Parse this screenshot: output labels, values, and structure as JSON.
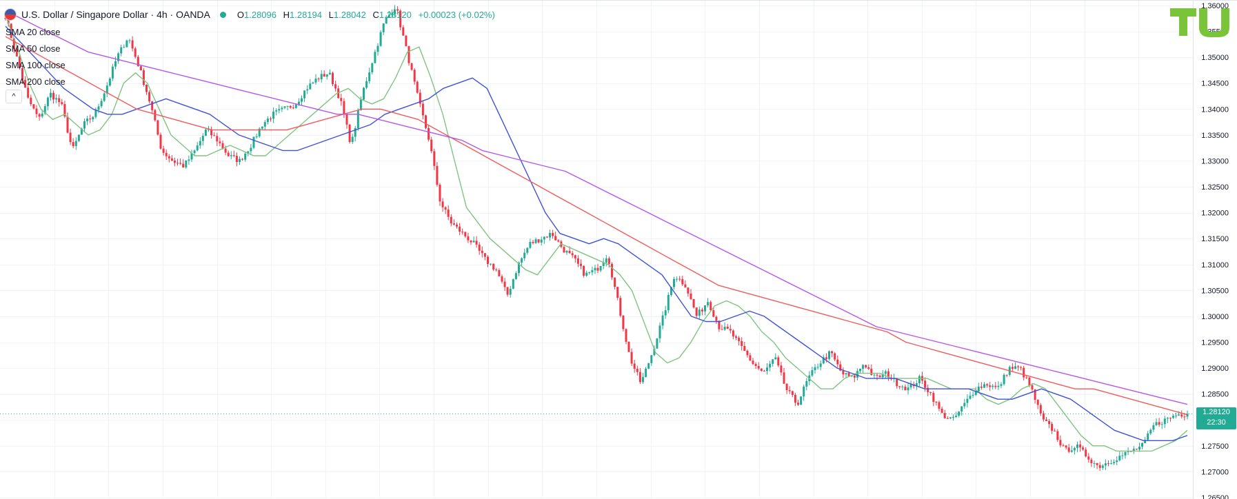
{
  "header": {
    "symbol_title": "U.S. Dollar / Singapore Dollar · 4h · OANDA",
    "open_label": "O",
    "open_value": "1.28096",
    "high_label": "H",
    "high_value": "1.28194",
    "low_label": "L",
    "low_value": "1.28042",
    "close_label": "C",
    "close_value": "1.28120",
    "change": "+0.00023 (+0.02%)"
  },
  "legend": [
    "SMA 20 close",
    "SMA 50 close",
    "SMA 100 close",
    "SMA 200 close"
  ],
  "collapse_icon": "^",
  "price_label": {
    "price": "1.28120",
    "timer": "22:30"
  },
  "colors": {
    "up": "#22ab94",
    "down": "#f23645",
    "sma20": "#7fc47f",
    "sma50": "#3f51d8",
    "sma100": "#f25a5a",
    "sma200": "#b455f2",
    "accent": "#22ab94"
  },
  "chart_data": {
    "type": "candlestick",
    "ylim": [
      1.265,
      1.36
    ],
    "y_ticks": [
      "1.36000",
      "1.35500",
      "1.35000",
      "1.34500",
      "1.34000",
      "1.33500",
      "1.33000",
      "1.32500",
      "1.32000",
      "1.31500",
      "1.31000",
      "1.30500",
      "1.30000",
      "1.29500",
      "1.29000",
      "1.28500",
      "1.28000",
      "1.27500",
      "1.27000",
      "1.26500"
    ],
    "close_anchors": [
      1.358,
      1.35,
      1.342,
      1.338,
      1.343,
      1.341,
      1.332,
      1.337,
      1.339,
      1.344,
      1.35,
      1.354,
      1.348,
      1.341,
      1.332,
      1.33,
      1.329,
      1.332,
      1.336,
      1.334,
      1.331,
      1.33,
      1.333,
      1.337,
      1.339,
      1.34,
      1.341,
      1.344,
      1.346,
      1.347,
      1.342,
      1.333,
      1.343,
      1.35,
      1.357,
      1.36,
      1.351,
      1.342,
      1.334,
      1.322,
      1.318,
      1.316,
      1.314,
      1.311,
      1.309,
      1.304,
      1.31,
      1.314,
      1.315,
      1.316,
      1.313,
      1.311,
      1.308,
      1.309,
      1.312,
      1.302,
      1.292,
      1.287,
      1.293,
      1.3,
      1.308,
      1.306,
      1.3,
      1.303,
      1.298,
      1.297,
      1.294,
      1.291,
      1.289,
      1.292,
      1.286,
      1.283,
      1.288,
      1.291,
      1.293,
      1.289,
      1.288,
      1.291,
      1.288,
      1.289,
      1.287,
      1.286,
      1.288,
      1.285,
      1.281,
      1.28,
      1.283,
      1.286,
      1.287,
      1.286,
      1.29,
      1.29,
      1.286,
      1.28,
      1.278,
      1.274,
      1.275,
      1.273,
      1.271,
      1.272,
      1.273,
      1.274,
      1.275,
      1.279,
      1.28,
      1.281,
      1.2812
    ],
    "series": [
      {
        "name": "SMA 20 close",
        "values": [
          1.358,
          1.352,
          1.345,
          1.34,
          1.338,
          1.339,
          1.337,
          1.335,
          1.336,
          1.339,
          1.345,
          1.347,
          1.345,
          1.34,
          1.335,
          1.333,
          1.331,
          1.331,
          1.332,
          1.333,
          1.332,
          1.331,
          1.331,
          1.333,
          1.335,
          1.337,
          1.339,
          1.341,
          1.343,
          1.344,
          1.342,
          1.341,
          1.342,
          1.346,
          1.351,
          1.352,
          1.346,
          1.339,
          1.33,
          1.321,
          1.318,
          1.315,
          1.313,
          1.311,
          1.309,
          1.308,
          1.311,
          1.314,
          1.313,
          1.312,
          1.311,
          1.31,
          1.308,
          1.305,
          1.299,
          1.293,
          1.291,
          1.292,
          1.295,
          1.299,
          1.302,
          1.303,
          1.302,
          1.3,
          1.297,
          1.295,
          1.292,
          1.29,
          1.288,
          1.286,
          1.286,
          1.288,
          1.289,
          1.289,
          1.289,
          1.288,
          1.288,
          1.288,
          1.288,
          1.287,
          1.286,
          1.286,
          1.286,
          1.284,
          1.283,
          1.284,
          1.286,
          1.287,
          1.286,
          1.283,
          1.28,
          1.277,
          1.275,
          1.275,
          1.274,
          1.274,
          1.274,
          1.274,
          1.275,
          1.276,
          1.278
        ]
      },
      {
        "name": "SMA 50 close",
        "values": [
          1.356,
          1.353,
          1.35,
          1.347,
          1.344,
          1.342,
          1.34,
          1.339,
          1.339,
          1.34,
          1.341,
          1.342,
          1.341,
          1.34,
          1.339,
          1.337,
          1.335,
          1.334,
          1.333,
          1.332,
          1.332,
          1.333,
          1.334,
          1.335,
          1.336,
          1.337,
          1.339,
          1.34,
          1.341,
          1.342,
          1.344,
          1.345,
          1.346,
          1.344,
          1.338,
          1.332,
          1.326,
          1.32,
          1.316,
          1.315,
          1.314,
          1.315,
          1.314,
          1.312,
          1.31,
          1.308,
          1.304,
          1.3,
          1.299,
          1.299,
          1.3,
          1.301,
          1.3,
          1.298,
          1.296,
          1.294,
          1.292,
          1.29,
          1.289,
          1.288,
          1.288,
          1.288,
          1.287,
          1.286,
          1.286,
          1.286,
          1.286,
          1.285,
          1.284,
          1.284,
          1.285,
          1.286,
          1.285,
          1.284,
          1.282,
          1.28,
          1.278,
          1.277,
          1.276,
          1.276,
          1.276,
          1.277
        ]
      },
      {
        "name": "SMA 100 close",
        "values": [
          1.354,
          1.352,
          1.35,
          1.348,
          1.346,
          1.344,
          1.342,
          1.34,
          1.339,
          1.338,
          1.337,
          1.336,
          1.336,
          1.336,
          1.336,
          1.336,
          1.337,
          1.338,
          1.339,
          1.34,
          1.34,
          1.339,
          1.338,
          1.336,
          1.334,
          1.332,
          1.33,
          1.328,
          1.326,
          1.324,
          1.322,
          1.32,
          1.318,
          1.316,
          1.314,
          1.312,
          1.31,
          1.308,
          1.306,
          1.305,
          1.304,
          1.303,
          1.302,
          1.301,
          1.3,
          1.299,
          1.298,
          1.297,
          1.295,
          1.294,
          1.293,
          1.292,
          1.291,
          1.29,
          1.289,
          1.288,
          1.287,
          1.286,
          1.286,
          1.285,
          1.284,
          1.283,
          1.282,
          1.281
        ]
      },
      {
        "name": "SMA 200 close",
        "values": [
          1.359,
          1.357,
          1.355,
          1.353,
          1.351,
          1.35,
          1.349,
          1.348,
          1.347,
          1.346,
          1.345,
          1.344,
          1.343,
          1.342,
          1.341,
          1.34,
          1.339,
          1.339,
          1.338,
          1.337,
          1.336,
          1.335,
          1.334,
          1.332,
          1.331,
          1.33,
          1.329,
          1.328,
          1.326,
          1.324,
          1.322,
          1.32,
          1.318,
          1.316,
          1.314,
          1.312,
          1.31,
          1.308,
          1.306,
          1.304,
          1.302,
          1.3,
          1.298,
          1.297,
          1.296,
          1.295,
          1.294,
          1.293,
          1.292,
          1.291,
          1.29,
          1.289,
          1.288,
          1.287,
          1.286,
          1.285,
          1.284,
          1.283
        ]
      }
    ]
  }
}
